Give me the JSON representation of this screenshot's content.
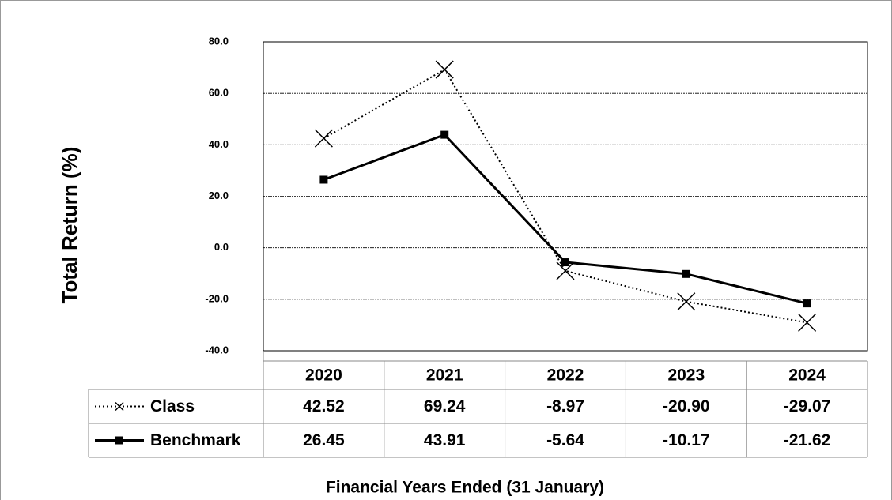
{
  "chart_data": {
    "type": "line",
    "y_label": "Total Return (%)",
    "x_label": "Financial  Years Ended (31 January)",
    "categories": [
      "2020",
      "2021",
      "2022",
      "2023",
      "2024"
    ],
    "series": [
      {
        "name": "Class",
        "color": "#000000",
        "linestyle": "dotted",
        "marker": "x",
        "values": [
          42.52,
          69.24,
          -8.97,
          -20.9,
          -29.07
        ],
        "value_labels": [
          "42.52",
          "69.24",
          "-8.97",
          "-20.90",
          "-29.07"
        ]
      },
      {
        "name": "Benchmark",
        "color": "#000000",
        "linestyle": "solid",
        "marker": "square",
        "values": [
          26.45,
          43.91,
          -5.64,
          -10.17,
          -21.62
        ],
        "value_labels": [
          "26.45",
          "43.91",
          "-5.64",
          "-10.17",
          "-21.62"
        ]
      }
    ],
    "ylim": [
      -40,
      80
    ],
    "yticks": [
      {
        "value": 80,
        "label": "80.0"
      },
      {
        "value": 60,
        "label": "60.0"
      },
      {
        "value": 40,
        "label": "40.0"
      },
      {
        "value": 20,
        "label": "20.0"
      },
      {
        "value": 0,
        "label": "0.0"
      },
      {
        "value": -20,
        "label": "-20.0"
      },
      {
        "value": -40,
        "label": "-40.0"
      }
    ],
    "grid": true
  }
}
